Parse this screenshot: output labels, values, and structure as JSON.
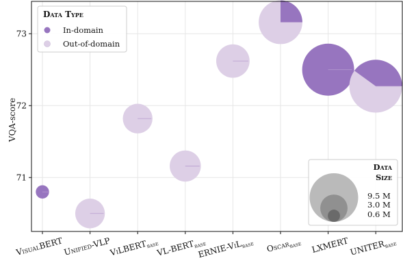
{
  "chart_data": {
    "type": "scatter",
    "subtype": "bubble-pie",
    "ylabel": "VQA-score",
    "xlabel": "",
    "ylim": [
      70.25,
      73.45
    ],
    "yticks": [
      71,
      72,
      73
    ],
    "grid": true,
    "categories": [
      {
        "main": "VisualBERT",
        "sub": ""
      },
      {
        "main": "Unified-VLP",
        "sub": ""
      },
      {
        "main": "ViLBERT",
        "sub": "base"
      },
      {
        "main": "VL-BERT",
        "sub": "base"
      },
      {
        "main": "ERNIE-ViL",
        "sub": "base"
      },
      {
        "main": "Oscar",
        "sub": "base"
      },
      {
        "main": "LXMERT",
        "sub": ""
      },
      {
        "main": "UNITER",
        "sub": "base"
      }
    ],
    "points": [
      {
        "name": "VisualBERT",
        "y": 70.8,
        "size_m": 0.6,
        "in_domain_fraction": 1.0
      },
      {
        "name": "Unified-VLP",
        "y": 70.5,
        "size_m": 3.0,
        "in_domain_fraction": 0.0
      },
      {
        "name": "ViLBERT",
        "y": 71.82,
        "size_m": 3.0,
        "in_domain_fraction": 0.0
      },
      {
        "name": "VL-BERT",
        "y": 71.16,
        "size_m": 3.3,
        "in_domain_fraction": 0.0
      },
      {
        "name": "ERNIE-ViL",
        "y": 72.62,
        "size_m": 3.8,
        "in_domain_fraction": 0.0
      },
      {
        "name": "Oscar",
        "y": 73.16,
        "size_m": 6.5,
        "in_domain_fraction": 0.25
      },
      {
        "name": "LXMERT",
        "y": 72.5,
        "size_m": 9.2,
        "in_domain_fraction": 1.0
      },
      {
        "name": "UNITER",
        "y": 72.27,
        "size_m": 9.5,
        "in_domain_fraction": 0.4
      }
    ],
    "legend": {
      "title": "Data Type",
      "placement": "top-left",
      "entries": [
        {
          "label": "In-domain",
          "color": "#9775bf"
        },
        {
          "label": "Out-of-domain",
          "color": "#ddcfe6"
        }
      ]
    },
    "size_legend": {
      "title_line1": "Data",
      "title_line2": "Size",
      "placement": "bottom-right",
      "entries": [
        {
          "label": "9.5 M",
          "size_m": 9.5,
          "color": "#b3b3b3"
        },
        {
          "label": "3.0 M",
          "size_m": 3.0,
          "color": "#8c8c8c"
        },
        {
          "label": "0.6 M",
          "size_m": 0.6,
          "color": "#666666"
        }
      ]
    },
    "colors": {
      "in_domain": "#9775bf",
      "out_of_domain": "#ddcfe6",
      "grid": "#e6e6e6",
      "axis": "#111111"
    }
  }
}
